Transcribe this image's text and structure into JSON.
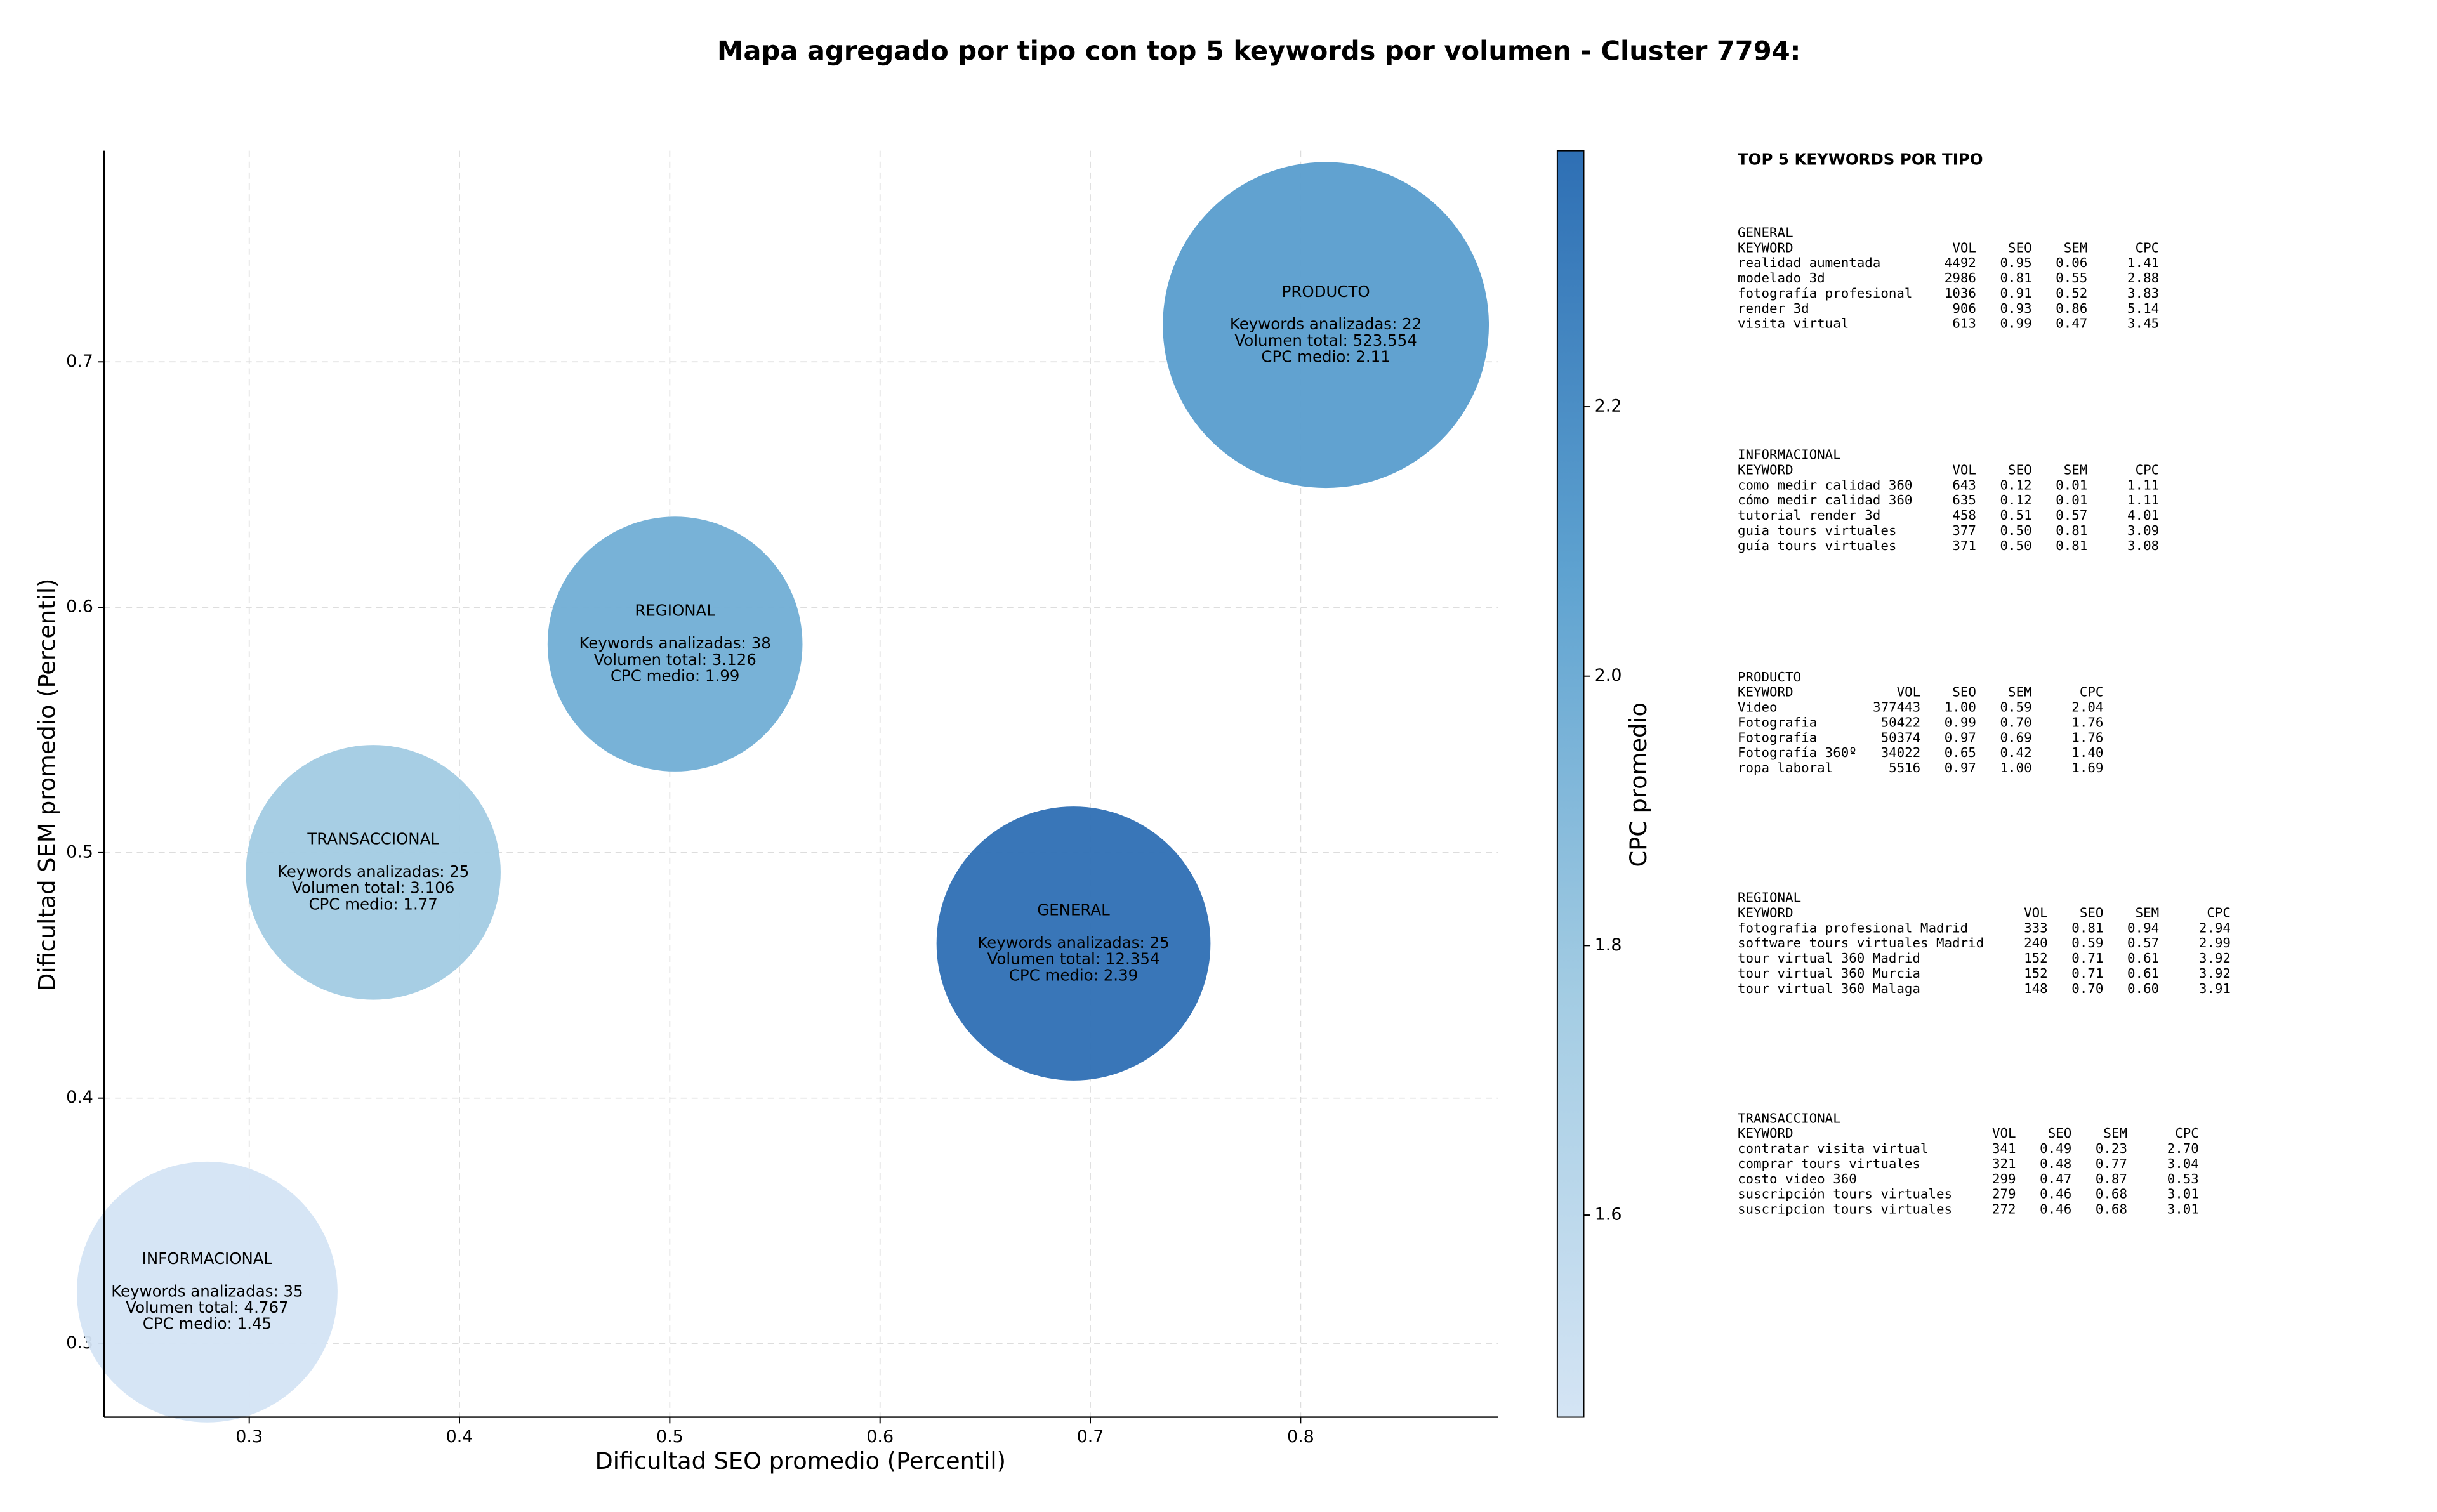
{
  "chart_data": {
    "type": "bubble",
    "title": "Mapa agregado por tipo con top 5 keywords por volumen - Cluster 7794:",
    "x_label": "Dificultad SEO promedio (Percentil)",
    "y_label": "Dificultad SEM promedio (Percentil)",
    "colorbar_label": "CPC promedio",
    "categories": [
      "PRODUCTO",
      "REGIONAL",
      "TRANSACCIONAL",
      "GENERAL",
      "INFORMACIONAL"
    ],
    "x": [
      0.812,
      0.5025,
      0.359,
      0.692,
      0.28
    ],
    "y": [
      0.715,
      0.585,
      0.492,
      0.463,
      0.321
    ],
    "sizes": [
      523554,
      3126,
      3106,
      12354,
      4767
    ],
    "size_scale": "log",
    "colors": [
      2.11,
      1.99,
      1.77,
      2.39,
      1.45
    ],
    "annotations": [
      [
        "Keywords analizadas: 22",
        "Volumen total: 523.554",
        "CPC medio: 2.11"
      ],
      [
        "Keywords analizadas: 38",
        "Volumen total: 3.126",
        "CPC medio: 1.99"
      ],
      [
        "Keywords analizadas: 25",
        "Volumen total: 3.106",
        "CPC medio: 1.77"
      ],
      [
        "Keywords analizadas: 25",
        "Volumen total: 12.354",
        "CPC medio: 2.39"
      ],
      [
        "Keywords analizadas: 35",
        "Volumen total: 4.767",
        "CPC medio: 1.45"
      ]
    ],
    "colormap": [
      "#d4e4f4",
      "#a3cce3",
      "#5ea2d0",
      "#2e6fb4"
    ],
    "clim": [
      1.45,
      2.39
    ],
    "cticks": [
      1.6,
      1.8,
      {
        "value": 2,
        "label": "2.0"
      },
      2.2
    ],
    "xlim": [
      0.231,
      0.894
    ],
    "xticks": [
      0.3,
      0.4,
      0.5,
      0.6,
      0.7,
      0.8
    ],
    "ylim": [
      0.27,
      0.786
    ],
    "yticks": [
      0.3,
      0.4,
      0.5,
      0.6,
      0.7
    ],
    "grid": true
  },
  "keyword_table": {
    "title": "TOP 5 KEYWORDS POR TIPO",
    "header": [
      "KEYWORD",
      "VOL",
      "SEO",
      "SEM",
      "CPC"
    ],
    "groups": [
      {
        "name": "GENERAL",
        "rows": [
          [
            "realidad aumentada",
            "4492",
            "0.95",
            "0.06",
            "1.41"
          ],
          [
            "modelado 3d",
            "2986",
            "0.81",
            "0.55",
            "2.88"
          ],
          [
            "fotografía profesional",
            "1036",
            "0.91",
            "0.52",
            "3.83"
          ],
          [
            "render 3d",
            "906",
            "0.93",
            "0.86",
            "5.14"
          ],
          [
            "visita virtual",
            "613",
            "0.99",
            "0.47",
            "3.45"
          ]
        ]
      },
      {
        "name": "INFORMACIONAL",
        "rows": [
          [
            "como medir calidad 360",
            "643",
            "0.12",
            "0.01",
            "1.11"
          ],
          [
            "cómo medir calidad 360",
            "635",
            "0.12",
            "0.01",
            "1.11"
          ],
          [
            "tutorial render 3d",
            "458",
            "0.51",
            "0.57",
            "4.01"
          ],
          [
            "guia tours virtuales",
            "377",
            "0.50",
            "0.81",
            "3.09"
          ],
          [
            "guía tours virtuales",
            "371",
            "0.50",
            "0.81",
            "3.08"
          ]
        ]
      },
      {
        "name": "PRODUCTO",
        "rows": [
          [
            "Video",
            "377443",
            "1.00",
            "0.59",
            "2.04"
          ],
          [
            "Fotografia",
            "50422",
            "0.99",
            "0.70",
            "1.76"
          ],
          [
            "Fotografía",
            "50374",
            "0.97",
            "0.69",
            "1.76"
          ],
          [
            "Fotografía 360º",
            "34022",
            "0.65",
            "0.42",
            "1.40"
          ],
          [
            "ropa laboral",
            "5516",
            "0.97",
            "1.00",
            "1.69"
          ]
        ]
      },
      {
        "name": "REGIONAL",
        "rows": [
          [
            "fotografia profesional Madrid",
            "333",
            "0.81",
            "0.94",
            "2.94"
          ],
          [
            "software tours virtuales Madrid",
            "240",
            "0.59",
            "0.57",
            "2.99"
          ],
          [
            "tour virtual 360 Madrid",
            "152",
            "0.71",
            "0.61",
            "3.92"
          ],
          [
            "tour virtual 360 Murcia",
            "152",
            "0.71",
            "0.61",
            "3.92"
          ],
          [
            "tour virtual 360 Malaga",
            "148",
            "0.70",
            "0.60",
            "3.91"
          ]
        ]
      },
      {
        "name": "TRANSACCIONAL",
        "rows": [
          [
            "contratar visita virtual",
            "341",
            "0.49",
            "0.23",
            "2.70"
          ],
          [
            "comprar tours virtuales",
            "321",
            "0.48",
            "0.77",
            "3.04"
          ],
          [
            "costo video 360",
            "299",
            "0.47",
            "0.87",
            "0.53"
          ],
          [
            "suscripción tours virtuales",
            "279",
            "0.46",
            "0.68",
            "3.01"
          ],
          [
            "suscripcion tours virtuales",
            "272",
            "0.46",
            "0.68",
            "3.01"
          ]
        ]
      }
    ]
  }
}
